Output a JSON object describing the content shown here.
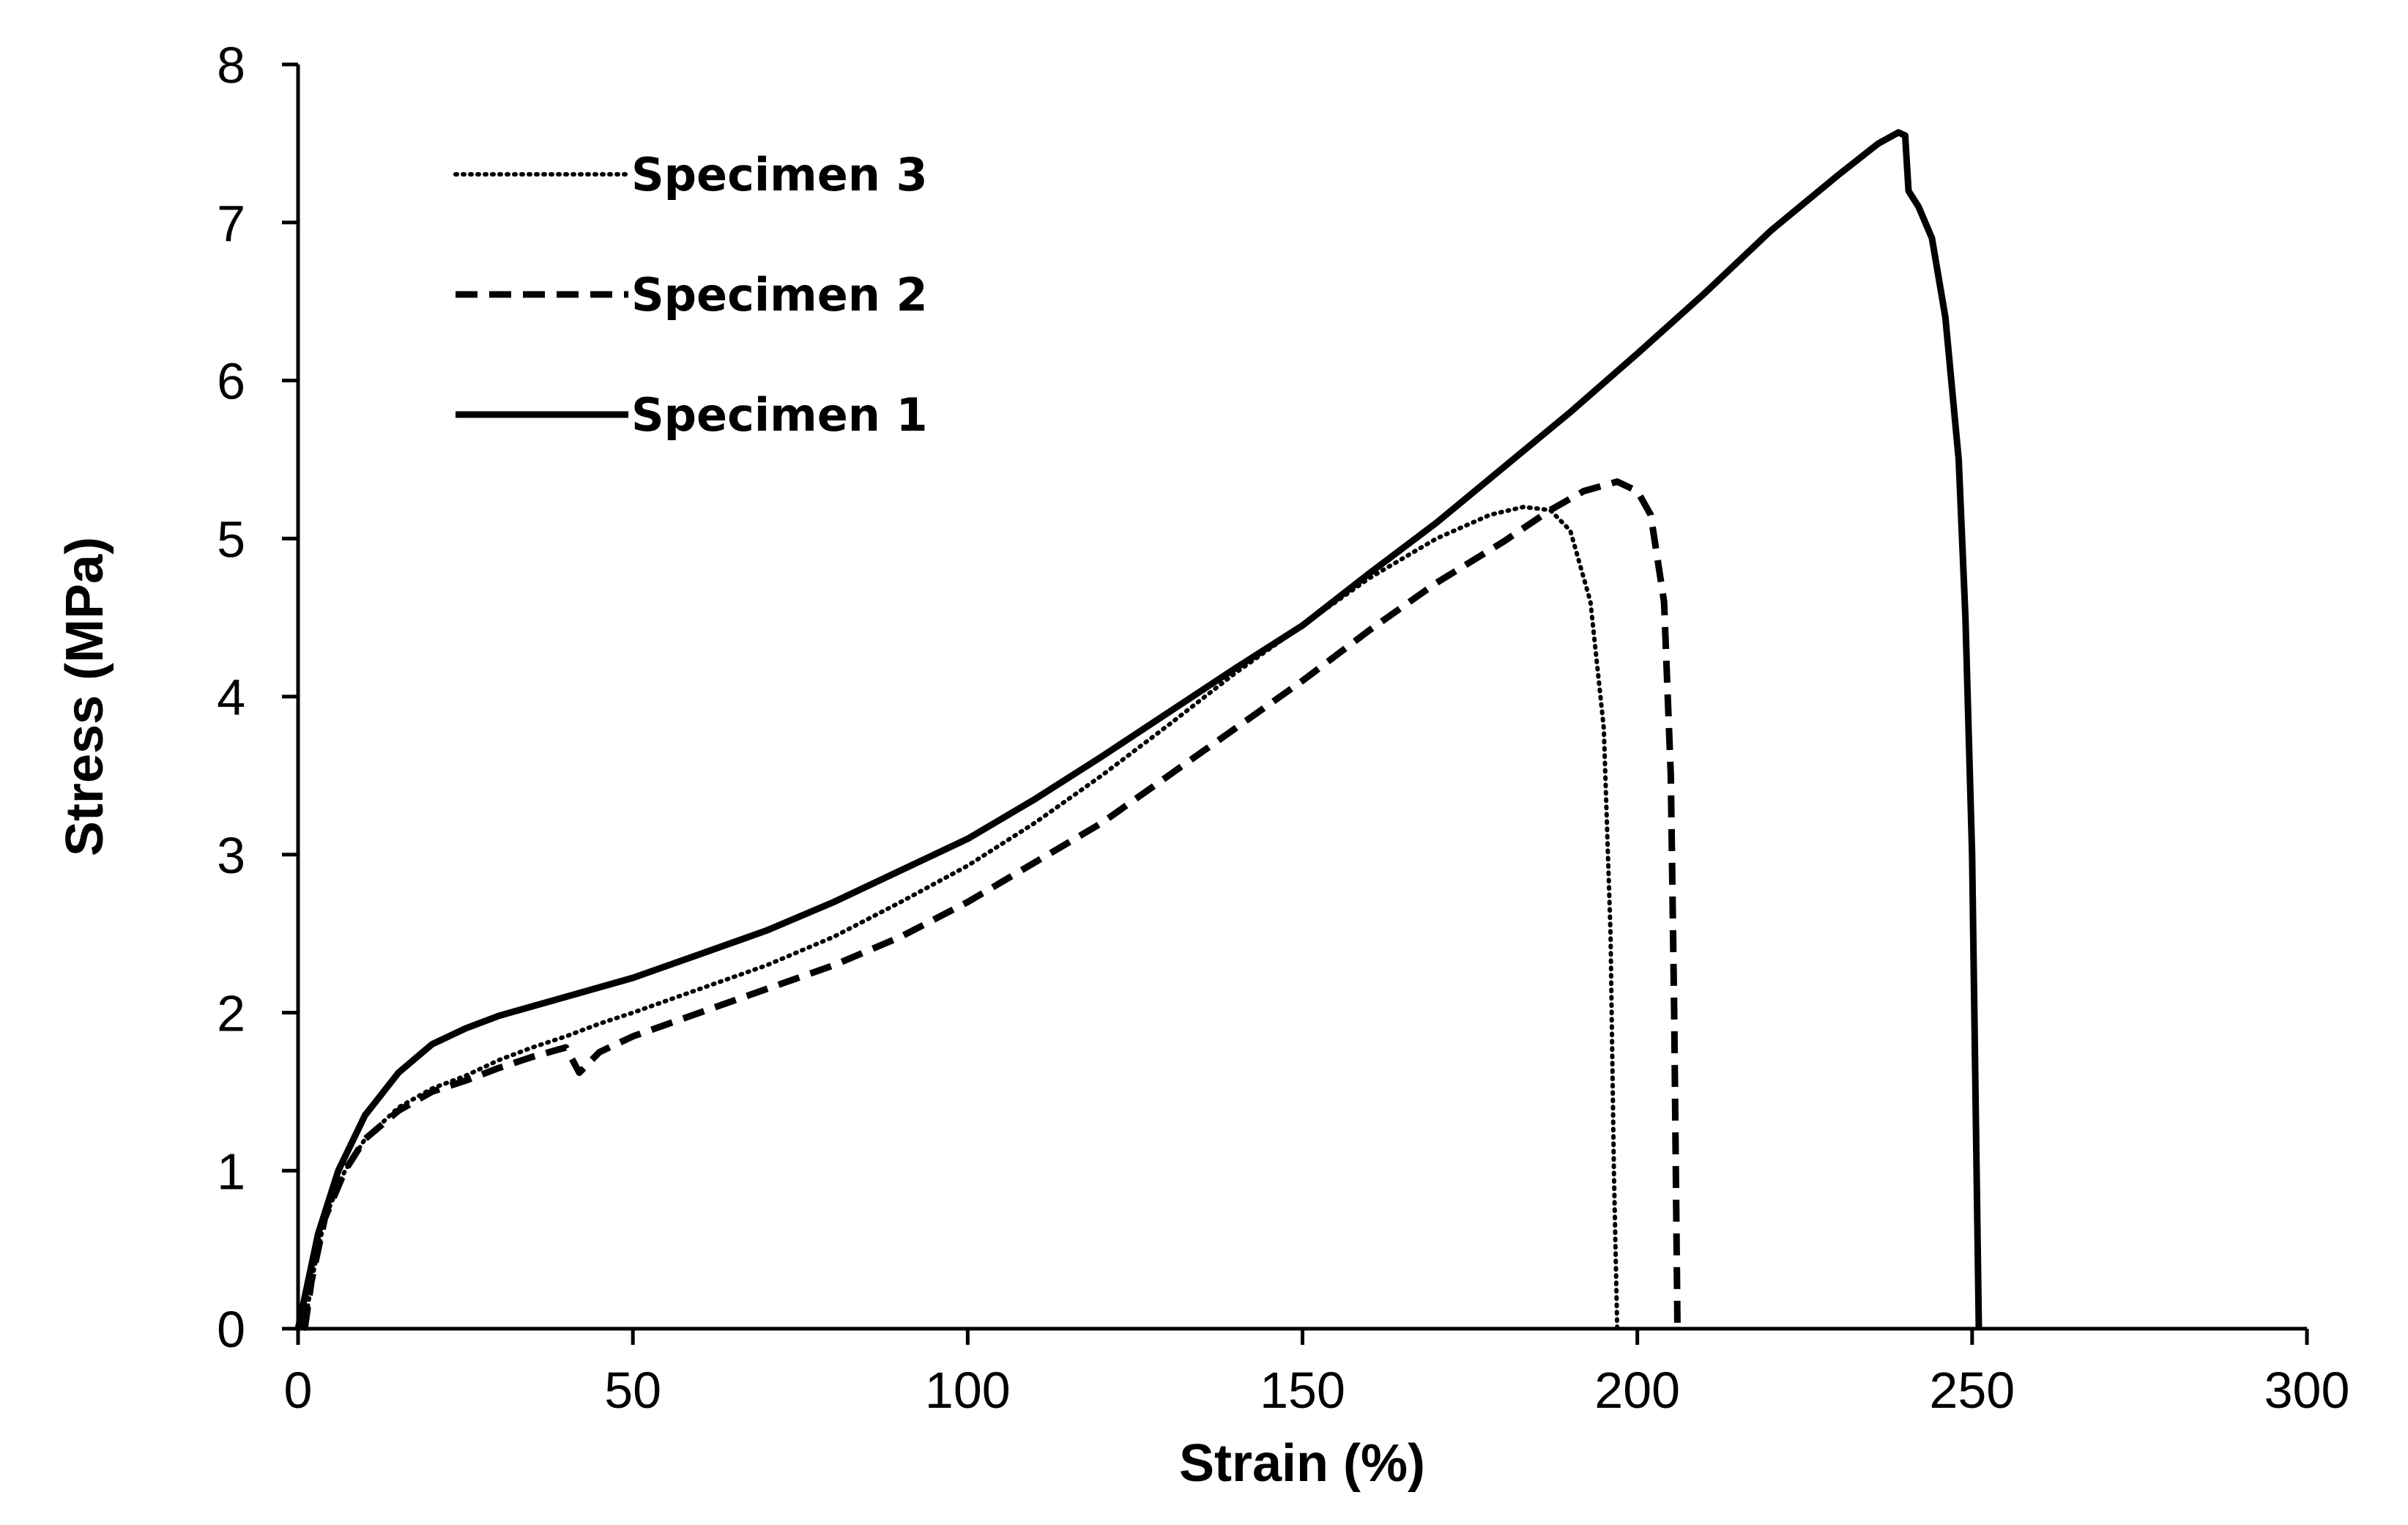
{
  "chart_data": {
    "type": "line",
    "title": "",
    "xlabel": "Strain (%)",
    "ylabel": "Stress (MPa)",
    "xlim": [
      0,
      300
    ],
    "ylim": [
      0,
      8
    ],
    "x_ticks": [
      "0",
      "50",
      "100",
      "150",
      "200",
      "250",
      "300"
    ],
    "y_ticks": [
      "0",
      "1",
      "2",
      "3",
      "4",
      "5",
      "6",
      "7",
      "8"
    ],
    "grid": false,
    "legend_position": "top-left",
    "series": [
      {
        "name": "Specimen 3",
        "style": "dotted",
        "color": "#000000",
        "points": [
          [
            1,
            0
          ],
          [
            2,
            0.3
          ],
          [
            4,
            0.7
          ],
          [
            7,
            1.0
          ],
          [
            10,
            1.2
          ],
          [
            15,
            1.4
          ],
          [
            20,
            1.52
          ],
          [
            25,
            1.6
          ],
          [
            30,
            1.7
          ],
          [
            35,
            1.78
          ],
          [
            40,
            1.85
          ],
          [
            45,
            1.93
          ],
          [
            50,
            2.0
          ],
          [
            60,
            2.15
          ],
          [
            70,
            2.3
          ],
          [
            80,
            2.48
          ],
          [
            90,
            2.7
          ],
          [
            100,
            2.93
          ],
          [
            110,
            3.2
          ],
          [
            120,
            3.5
          ],
          [
            130,
            3.82
          ],
          [
            140,
            4.15
          ],
          [
            150,
            4.45
          ],
          [
            160,
            4.75
          ],
          [
            170,
            5.0
          ],
          [
            178,
            5.15
          ],
          [
            183,
            5.2
          ],
          [
            187,
            5.18
          ],
          [
            190,
            5.05
          ],
          [
            193,
            4.6
          ],
          [
            195,
            3.8
          ],
          [
            196,
            2.5
          ],
          [
            196.5,
            1.0
          ],
          [
            197,
            0
          ]
        ]
      },
      {
        "name": "Specimen 2",
        "style": "dashed",
        "color": "#000000",
        "points": [
          [
            1,
            0
          ],
          [
            2,
            0.3
          ],
          [
            4,
            0.7
          ],
          [
            7,
            1.0
          ],
          [
            10,
            1.2
          ],
          [
            15,
            1.38
          ],
          [
            20,
            1.5
          ],
          [
            25,
            1.57
          ],
          [
            30,
            1.65
          ],
          [
            35,
            1.72
          ],
          [
            40,
            1.78
          ],
          [
            42,
            1.62
          ],
          [
            45,
            1.75
          ],
          [
            50,
            1.85
          ],
          [
            60,
            2.0
          ],
          [
            70,
            2.15
          ],
          [
            80,
            2.3
          ],
          [
            90,
            2.48
          ],
          [
            100,
            2.7
          ],
          [
            110,
            2.95
          ],
          [
            120,
            3.2
          ],
          [
            130,
            3.5
          ],
          [
            140,
            3.8
          ],
          [
            150,
            4.1
          ],
          [
            160,
            4.42
          ],
          [
            170,
            4.72
          ],
          [
            180,
            4.98
          ],
          [
            187,
            5.18
          ],
          [
            192,
            5.3
          ],
          [
            197,
            5.36
          ],
          [
            200,
            5.3
          ],
          [
            202,
            5.15
          ],
          [
            204,
            4.6
          ],
          [
            205,
            3.5
          ],
          [
            205.5,
            2.0
          ],
          [
            206,
            0
          ]
        ]
      },
      {
        "name": "Specimen 1",
        "style": "solid",
        "color": "#000000",
        "points": [
          [
            0,
            0
          ],
          [
            1,
            0.2
          ],
          [
            3,
            0.6
          ],
          [
            6,
            1.0
          ],
          [
            10,
            1.35
          ],
          [
            15,
            1.62
          ],
          [
            20,
            1.8
          ],
          [
            25,
            1.9
          ],
          [
            30,
            1.98
          ],
          [
            40,
            2.1
          ],
          [
            50,
            2.22
          ],
          [
            60,
            2.37
          ],
          [
            70,
            2.52
          ],
          [
            80,
            2.7
          ],
          [
            90,
            2.9
          ],
          [
            100,
            3.1
          ],
          [
            110,
            3.35
          ],
          [
            120,
            3.62
          ],
          [
            130,
            3.9
          ],
          [
            140,
            4.18
          ],
          [
            150,
            4.45
          ],
          [
            160,
            4.78
          ],
          [
            170,
            5.1
          ],
          [
            180,
            5.45
          ],
          [
            190,
            5.8
          ],
          [
            200,
            6.17
          ],
          [
            210,
            6.55
          ],
          [
            220,
            6.95
          ],
          [
            230,
            7.3
          ],
          [
            236,
            7.5
          ],
          [
            239,
            7.57
          ],
          [
            240,
            7.55
          ],
          [
            240.5,
            7.2
          ],
          [
            242,
            7.1
          ],
          [
            244,
            6.9
          ],
          [
            246,
            6.4
          ],
          [
            248,
            5.5
          ],
          [
            249,
            4.5
          ],
          [
            250,
            3.0
          ],
          [
            250.5,
            1.5
          ],
          [
            251,
            0
          ]
        ]
      }
    ]
  }
}
